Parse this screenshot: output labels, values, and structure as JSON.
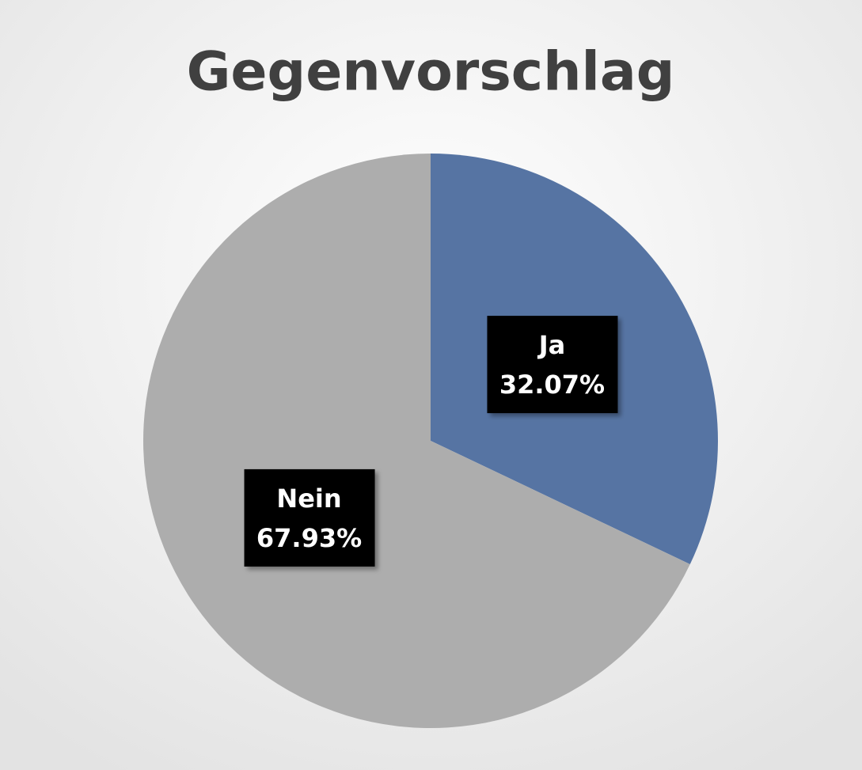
{
  "chart_data": {
    "type": "pie",
    "title": "Gegenvorschlag",
    "categories": [
      "Ja",
      "Nein"
    ],
    "values": [
      32.07,
      67.93
    ],
    "value_labels": [
      "32.07%",
      "67.93%"
    ],
    "colors": [
      "#5674a3",
      "#adadad"
    ]
  }
}
